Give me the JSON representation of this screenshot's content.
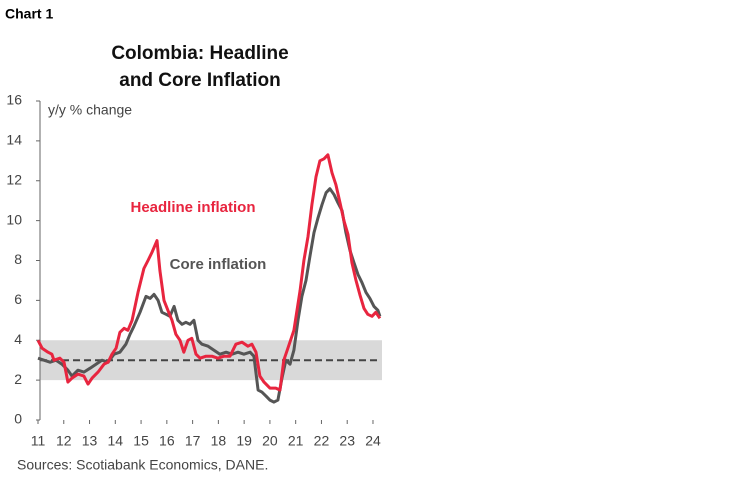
{
  "chart_data": {
    "type": "line",
    "label": "Chart 1",
    "title_lines": [
      "Colombia: Headline",
      "and Core Inflation"
    ],
    "y_label": "y/y % change",
    "source": "Sources: Scotiabank Economics, DANE.",
    "xlim": [
      11,
      24.35
    ],
    "xticks": [
      11,
      12,
      13,
      14,
      15,
      16,
      17,
      18,
      19,
      20,
      21,
      22,
      23,
      24
    ],
    "ylim": [
      0,
      16
    ],
    "yticks": [
      0,
      2,
      4,
      6,
      8,
      10,
      12,
      14,
      16
    ],
    "band": [
      2,
      4
    ],
    "band_color": "#d9d9d9",
    "reference_line": 3,
    "series": [
      {
        "name": "Headline inflation",
        "color": "#e8253f",
        "x": [
          11.0,
          11.16,
          11.39,
          11.54,
          11.62,
          11.85,
          12.01,
          12.16,
          12.32,
          12.55,
          12.78,
          12.94,
          13.1,
          13.33,
          13.56,
          13.72,
          13.87,
          14.03,
          14.18,
          14.34,
          14.49,
          14.65,
          14.88,
          15.11,
          15.27,
          15.42,
          15.62,
          15.73,
          15.89,
          16.04,
          16.2,
          16.35,
          16.51,
          16.66,
          16.82,
          16.97,
          17.13,
          17.29,
          17.52,
          17.75,
          17.98,
          18.22,
          18.45,
          18.68,
          18.92,
          19.15,
          19.3,
          19.46,
          19.61,
          19.77,
          20.0,
          20.23,
          20.39,
          20.54,
          20.7,
          20.93,
          21.17,
          21.32,
          21.48,
          21.63,
          21.79,
          21.94,
          22.1,
          22.25,
          22.41,
          22.56,
          22.72,
          22.87,
          23.03,
          23.18,
          23.34,
          23.49,
          23.65,
          23.8,
          23.96,
          24.11,
          24.27
        ],
        "values": [
          4.0,
          3.6,
          3.4,
          3.3,
          3.0,
          3.1,
          2.9,
          1.9,
          2.1,
          2.3,
          2.2,
          1.8,
          2.1,
          2.4,
          2.8,
          2.9,
          3.3,
          3.6,
          4.4,
          4.6,
          4.5,
          5.0,
          6.4,
          7.6,
          8.0,
          8.4,
          9.0,
          7.5,
          6.0,
          5.5,
          5.0,
          4.3,
          4.0,
          3.4,
          4.0,
          4.1,
          3.3,
          3.1,
          3.2,
          3.2,
          3.1,
          3.2,
          3.2,
          3.8,
          3.9,
          3.7,
          3.8,
          3.4,
          2.2,
          1.9,
          1.6,
          1.6,
          1.5,
          3.0,
          3.6,
          4.5,
          6.5,
          8.0,
          9.2,
          10.8,
          12.2,
          13.0,
          13.1,
          13.3,
          12.4,
          11.8,
          10.9,
          10.0,
          9.3,
          7.9,
          7.0,
          6.3,
          5.6,
          5.3,
          5.2,
          5.4,
          5.1
        ]
      },
      {
        "name": "Core inflation",
        "color": "#555555",
        "x": [
          11.0,
          11.23,
          11.47,
          11.7,
          11.93,
          12.16,
          12.32,
          12.55,
          12.78,
          13.02,
          13.25,
          13.48,
          13.72,
          13.95,
          14.18,
          14.41,
          14.57,
          14.72,
          14.96,
          15.19,
          15.35,
          15.5,
          15.66,
          15.81,
          15.97,
          16.12,
          16.28,
          16.43,
          16.59,
          16.74,
          16.9,
          17.05,
          17.21,
          17.36,
          17.6,
          17.83,
          18.06,
          18.3,
          18.53,
          18.76,
          18.99,
          19.23,
          19.38,
          19.54,
          19.69,
          19.85,
          20.0,
          20.16,
          20.31,
          20.47,
          20.62,
          20.78,
          20.93,
          21.09,
          21.24,
          21.4,
          21.55,
          21.71,
          21.86,
          22.02,
          22.18,
          22.33,
          22.49,
          22.64,
          22.8,
          22.95,
          23.11,
          23.26,
          23.42,
          23.57,
          23.73,
          23.88,
          24.04,
          24.19,
          24.27
        ],
        "values": [
          3.1,
          3.0,
          2.9,
          3.0,
          2.8,
          2.5,
          2.2,
          2.5,
          2.4,
          2.6,
          2.8,
          3.0,
          2.9,
          3.3,
          3.4,
          3.8,
          4.3,
          4.7,
          5.4,
          6.2,
          6.1,
          6.3,
          6.0,
          5.4,
          5.3,
          5.2,
          5.7,
          5.0,
          4.8,
          4.9,
          4.8,
          5.0,
          4.0,
          3.8,
          3.7,
          3.5,
          3.3,
          3.4,
          3.3,
          3.4,
          3.3,
          3.4,
          3.2,
          1.5,
          1.4,
          1.2,
          1.0,
          0.9,
          1.0,
          2.1,
          3.0,
          2.8,
          3.5,
          5.0,
          6.2,
          7.0,
          8.2,
          9.4,
          10.1,
          10.8,
          11.4,
          11.6,
          11.3,
          10.9,
          10.5,
          9.4,
          8.5,
          7.9,
          7.3,
          6.9,
          6.4,
          6.1,
          5.7,
          5.5,
          5.2
        ]
      }
    ]
  }
}
